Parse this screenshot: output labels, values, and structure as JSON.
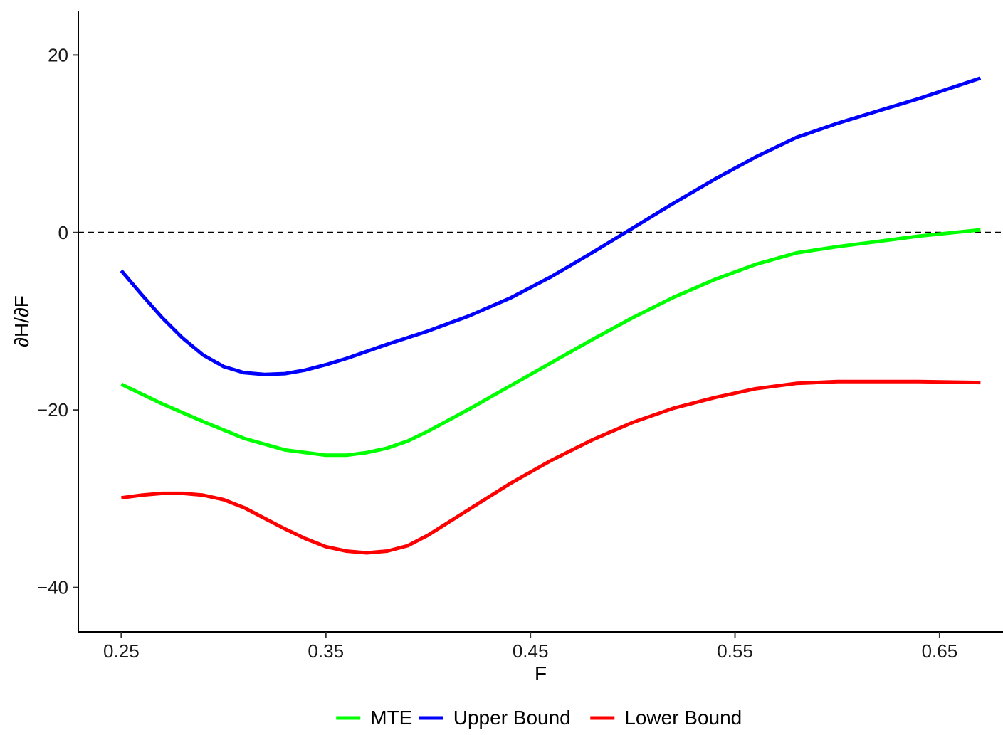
{
  "chart_data": {
    "type": "line",
    "title": "",
    "xlabel": "F",
    "ylabel": "∂H/∂F",
    "xlim": [
      0.229,
      0.681
    ],
    "ylim": [
      -45,
      25
    ],
    "x_ticks": [
      0.25,
      0.35,
      0.45,
      0.55,
      0.65
    ],
    "x_tick_labels": [
      "0.25",
      "0.35",
      "0.45",
      "0.55",
      "0.65"
    ],
    "y_ticks": [
      20,
      0,
      -20,
      -40
    ],
    "y_tick_labels": [
      "20",
      "0",
      "−20",
      "−40"
    ],
    "reference_line": {
      "y": 0,
      "style": "dashed",
      "color": "#000000"
    },
    "grid": false,
    "legend_position": "bottom",
    "series": [
      {
        "name": "MTE",
        "color": "#00ff00",
        "points": [
          [
            0.25,
            -17.1
          ],
          [
            0.27,
            -19.3
          ],
          [
            0.29,
            -21.3
          ],
          [
            0.31,
            -23.2
          ],
          [
            0.33,
            -24.5
          ],
          [
            0.35,
            -25.1
          ],
          [
            0.36,
            -25.1
          ],
          [
            0.37,
            -24.8
          ],
          [
            0.38,
            -24.3
          ],
          [
            0.39,
            -23.5
          ],
          [
            0.4,
            -22.4
          ],
          [
            0.42,
            -19.9
          ],
          [
            0.44,
            -17.3
          ],
          [
            0.46,
            -14.7
          ],
          [
            0.48,
            -12.1
          ],
          [
            0.5,
            -9.6
          ],
          [
            0.52,
            -7.3
          ],
          [
            0.54,
            -5.3
          ],
          [
            0.56,
            -3.6
          ],
          [
            0.58,
            -2.3
          ],
          [
            0.6,
            -1.6
          ],
          [
            0.62,
            -1.0
          ],
          [
            0.64,
            -0.4
          ],
          [
            0.67,
            0.3
          ]
        ]
      },
      {
        "name": "Upper Bound",
        "color": "#0000ff",
        "points": [
          [
            0.25,
            -4.3
          ],
          [
            0.26,
            -7.0
          ],
          [
            0.27,
            -9.6
          ],
          [
            0.28,
            -11.9
          ],
          [
            0.29,
            -13.8
          ],
          [
            0.3,
            -15.1
          ],
          [
            0.31,
            -15.8
          ],
          [
            0.32,
            -16.0
          ],
          [
            0.33,
            -15.9
          ],
          [
            0.34,
            -15.5
          ],
          [
            0.35,
            -14.9
          ],
          [
            0.36,
            -14.2
          ],
          [
            0.37,
            -13.4
          ],
          [
            0.38,
            -12.6
          ],
          [
            0.4,
            -11.1
          ],
          [
            0.42,
            -9.4
          ],
          [
            0.44,
            -7.4
          ],
          [
            0.46,
            -5.0
          ],
          [
            0.48,
            -2.3
          ],
          [
            0.5,
            0.5
          ],
          [
            0.52,
            3.3
          ],
          [
            0.54,
            6.0
          ],
          [
            0.56,
            8.5
          ],
          [
            0.58,
            10.7
          ],
          [
            0.6,
            12.3
          ],
          [
            0.62,
            13.7
          ],
          [
            0.64,
            15.1
          ],
          [
            0.67,
            17.4
          ]
        ]
      },
      {
        "name": "Lower Bound",
        "color": "#ff0000",
        "points": [
          [
            0.25,
            -29.9
          ],
          [
            0.26,
            -29.6
          ],
          [
            0.27,
            -29.4
          ],
          [
            0.28,
            -29.4
          ],
          [
            0.29,
            -29.6
          ],
          [
            0.3,
            -30.1
          ],
          [
            0.31,
            -31.0
          ],
          [
            0.32,
            -32.2
          ],
          [
            0.33,
            -33.4
          ],
          [
            0.34,
            -34.5
          ],
          [
            0.35,
            -35.4
          ],
          [
            0.36,
            -35.9
          ],
          [
            0.37,
            -36.1
          ],
          [
            0.38,
            -35.9
          ],
          [
            0.39,
            -35.3
          ],
          [
            0.4,
            -34.1
          ],
          [
            0.42,
            -31.2
          ],
          [
            0.44,
            -28.3
          ],
          [
            0.46,
            -25.7
          ],
          [
            0.48,
            -23.4
          ],
          [
            0.5,
            -21.4
          ],
          [
            0.52,
            -19.8
          ],
          [
            0.54,
            -18.6
          ],
          [
            0.56,
            -17.6
          ],
          [
            0.58,
            -17.0
          ],
          [
            0.6,
            -16.8
          ],
          [
            0.62,
            -16.8
          ],
          [
            0.64,
            -16.8
          ],
          [
            0.67,
            -16.9
          ]
        ]
      }
    ]
  }
}
